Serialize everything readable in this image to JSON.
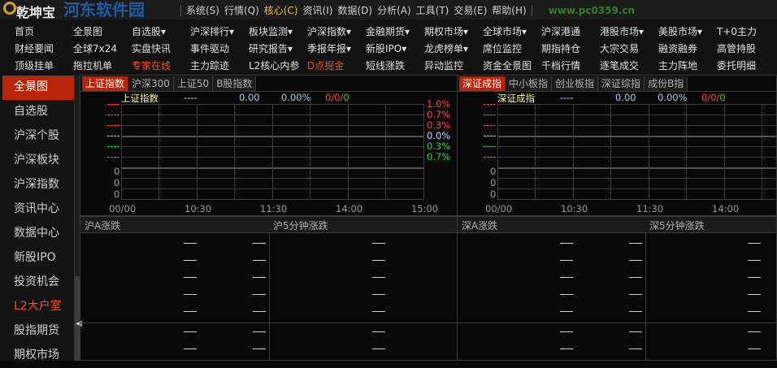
{
  "app": {
    "title": "乾坤宝",
    "watermark": "河东软件园",
    "watermark_url": "www.pc0359.cn"
  },
  "menu": [
    "系统(S)",
    "行情(Q)",
    "核心(C)",
    "资讯(I)",
    "数据(D)",
    "分析(A)",
    "工具(T)",
    "交易(E)",
    "帮助(H)"
  ],
  "menu_active": 2,
  "nav": {
    "rows": [
      [
        {
          "label": "首页"
        },
        {
          "label": "全景图"
        },
        {
          "label": "自选股▾"
        },
        {
          "label": "沪深排行▾"
        },
        {
          "label": "板块监测▾"
        },
        {
          "label": "沪深指数▾"
        },
        {
          "label": "金融期货▾"
        },
        {
          "label": "期权市场▾"
        },
        {
          "label": "全球市场▾"
        },
        {
          "label": "沪深港通"
        },
        {
          "label": "港股市场▾"
        },
        {
          "label": "美股市场▾"
        },
        {
          "label": "T+0主力"
        }
      ],
      [
        {
          "label": "财经要闻"
        },
        {
          "label": "全球7x24"
        },
        {
          "label": "实盘快讯"
        },
        {
          "label": "事件驱动"
        },
        {
          "label": "研究报告▾"
        },
        {
          "label": "季报年报▾"
        },
        {
          "label": "新股IPO▾"
        },
        {
          "label": "龙虎榜单▾"
        },
        {
          "label": "席位监控"
        },
        {
          "label": "期指持仓"
        },
        {
          "label": "大宗交易"
        },
        {
          "label": "融资融券"
        },
        {
          "label": "高管持股"
        }
      ],
      [
        {
          "label": "顶级挂单"
        },
        {
          "label": "拖拉机单"
        },
        {
          "label": "专家在线",
          "red": true
        },
        {
          "label": "主力踪迹"
        },
        {
          "label": "L2核心内参"
        },
        {
          "label": "D点掘金",
          "red": true
        },
        {
          "label": "短线涨跌"
        },
        {
          "label": "异动监控"
        },
        {
          "label": "资金全景图"
        },
        {
          "label": "千档行情"
        },
        {
          "label": "逐笔成交"
        },
        {
          "label": "主力阵地"
        },
        {
          "label": "委托明细"
        }
      ]
    ]
  },
  "sidebar": {
    "items": [
      "全景图",
      "自选股",
      "沪深个股",
      "沪深板块",
      "沪深指数",
      "资讯中心",
      "数据中心",
      "新股IPO",
      "投资机会",
      "L2大户室",
      "股指期货",
      "期权市场"
    ],
    "active": 0,
    "highlight": 9
  },
  "panels": [
    {
      "tabs": [
        "上证指数",
        "沪深300",
        "上证50",
        "B股指数"
      ],
      "active_tab": 0,
      "name": "上证指数",
      "dash": "----",
      "price": "0.00",
      "change": "0.00%",
      "counts": {
        "up": "0",
        "flat": "0",
        "down": "0"
      },
      "right_axis": [
        "1.0%",
        "0.7%",
        "0.3%",
        "0.0%",
        "0.3%",
        "0.7%"
      ],
      "volume_axis": [
        "0",
        "0",
        "0"
      ],
      "times": [
        "00/00",
        "10:30",
        "11:30",
        "14:00",
        "15:00"
      ]
    },
    {
      "tabs": [
        "深证成指",
        "中小板指",
        "创业板指",
        "深证综指",
        "成份B指"
      ],
      "active_tab": 0,
      "name": "深证成指",
      "dash": "----",
      "price": "0.00",
      "change": "0.00%",
      "counts": {
        "up": "0",
        "flat": "0",
        "down": "0"
      },
      "right_axis": [],
      "volume_axis": [
        "0",
        "0",
        "0"
      ],
      "times": [
        "00/00",
        "10:30",
        "11:30",
        "14:00",
        "15:00"
      ]
    }
  ],
  "bottom": [
    {
      "left_title": "沪A涨跌",
      "right_title": "沪5分钟涨跌"
    },
    {
      "left_title": "深A涨跌",
      "right_title": "深5分钟涨跌"
    }
  ],
  "colors": {
    "accent": "#b8260a",
    "up": "#ff4040",
    "down": "#20d040",
    "flat": "#c0d8ff",
    "name": "#ffff90",
    "highlight": "#ff4a1c"
  }
}
